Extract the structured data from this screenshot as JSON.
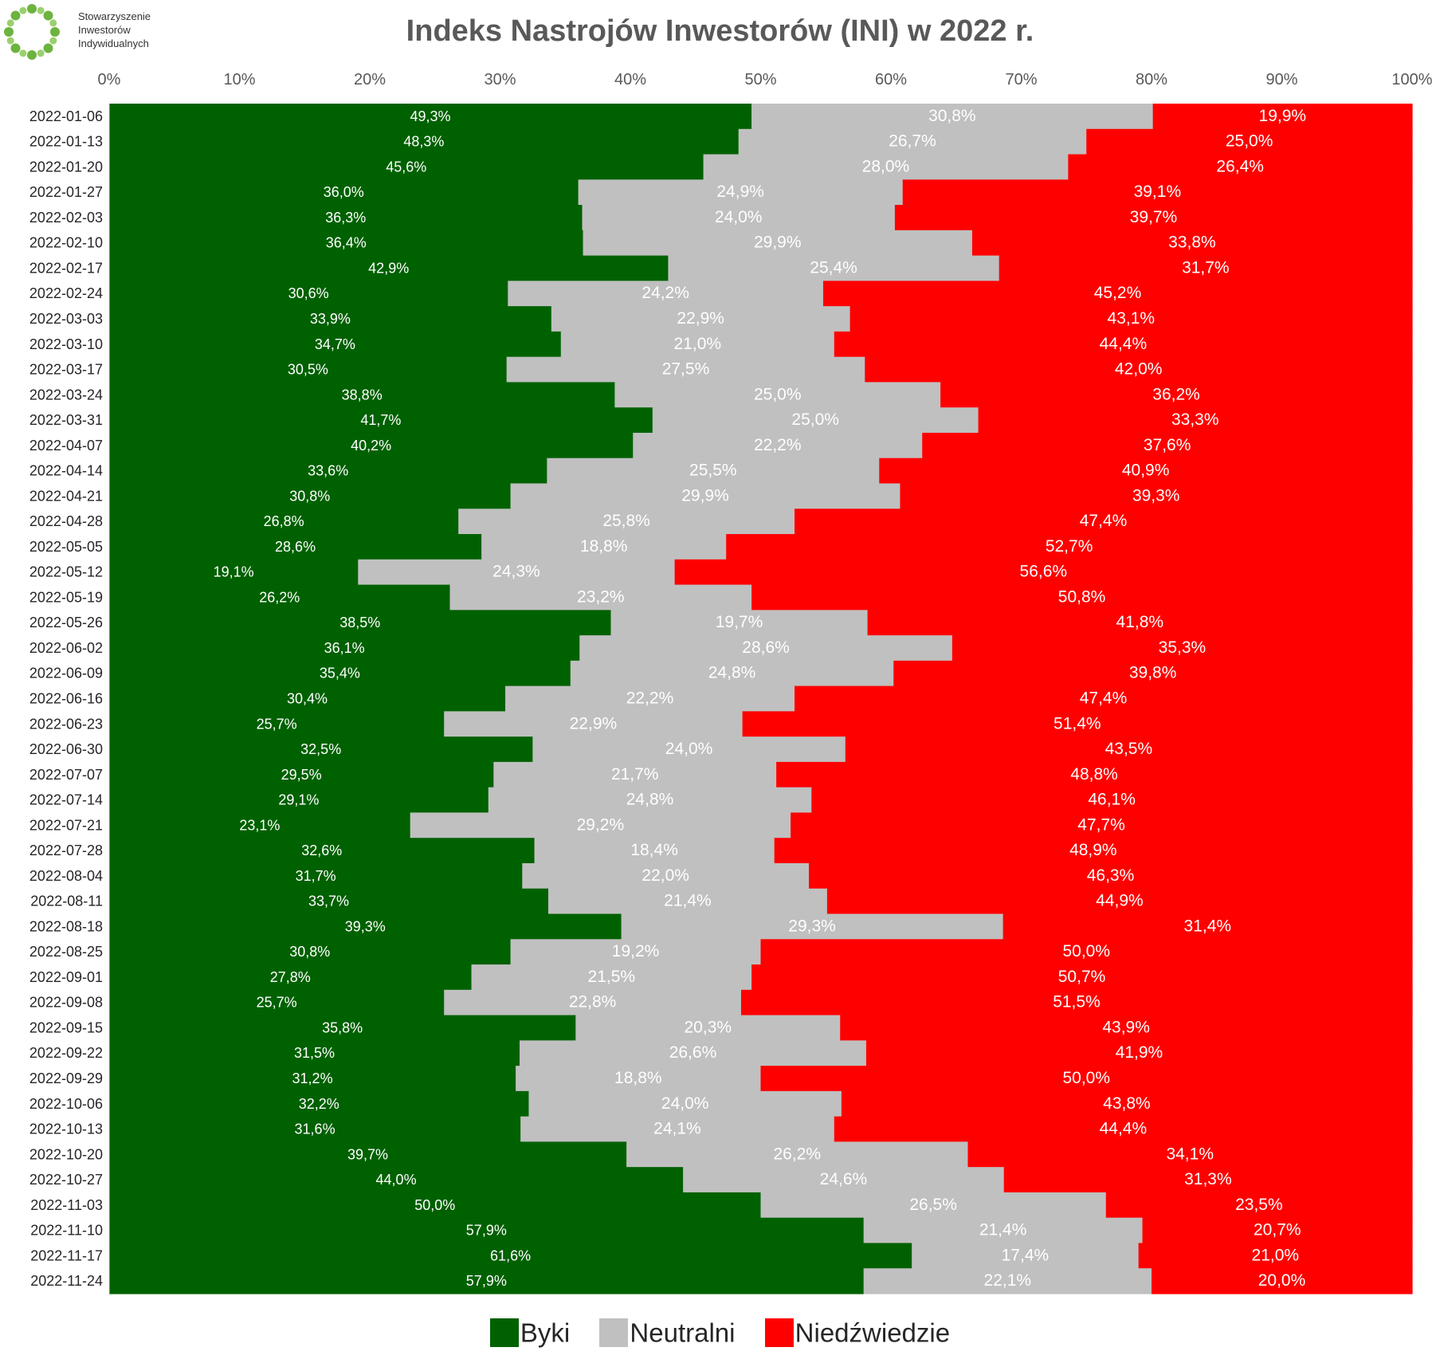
{
  "logo": {
    "lines": [
      "Stowarzyszenie",
      "Inwestorów",
      "Indywidualnych"
    ],
    "color": "#6db33f"
  },
  "chart_data": {
    "type": "bar",
    "orientation": "horizontal",
    "stacked": "percent",
    "title": "Indeks Nastrojów Inwestorów (INI) w 2022 r.",
    "x_ticks": [
      "0%",
      "10%",
      "20%",
      "30%",
      "40%",
      "50%",
      "60%",
      "70%",
      "80%",
      "90%",
      "100%"
    ],
    "xlim": [
      0,
      100
    ],
    "legend_position": "bottom",
    "categories": [
      "2022-01-06",
      "2022-01-13",
      "2022-01-20",
      "2022-01-27",
      "2022-02-03",
      "2022-02-10",
      "2022-02-17",
      "2022-02-24",
      "2022-03-03",
      "2022-03-10",
      "2022-03-17",
      "2022-03-24",
      "2022-03-31",
      "2022-04-07",
      "2022-04-14",
      "2022-04-21",
      "2022-04-28",
      "2022-05-05",
      "2022-05-12",
      "2022-05-19",
      "2022-05-26",
      "2022-06-02",
      "2022-06-09",
      "2022-06-16",
      "2022-06-23",
      "2022-06-30",
      "2022-07-07",
      "2022-07-14",
      "2022-07-21",
      "2022-07-28",
      "2022-08-04",
      "2022-08-11",
      "2022-08-18",
      "2022-08-25",
      "2022-09-01",
      "2022-09-08",
      "2022-09-15",
      "2022-09-22",
      "2022-09-29",
      "2022-10-06",
      "2022-10-13",
      "2022-10-20",
      "2022-10-27",
      "2022-11-03",
      "2022-11-10",
      "2022-11-17",
      "2022-11-24"
    ],
    "series": [
      {
        "name": "Byki",
        "color": "#006100",
        "label_color": "#ffffff",
        "values": [
          49.3,
          48.3,
          45.6,
          36.0,
          36.3,
          36.4,
          42.9,
          30.6,
          33.9,
          34.7,
          30.5,
          38.8,
          41.7,
          40.2,
          33.6,
          30.8,
          26.8,
          28.6,
          19.1,
          26.2,
          38.5,
          36.1,
          35.4,
          30.4,
          25.7,
          32.5,
          29.5,
          29.1,
          23.1,
          32.6,
          31.7,
          33.7,
          39.3,
          30.8,
          27.8,
          25.7,
          35.8,
          31.5,
          31.2,
          32.2,
          31.6,
          39.7,
          44.0,
          50.0,
          57.9,
          61.6,
          57.9
        ]
      },
      {
        "name": "Neutralni",
        "color": "#c0c0c0",
        "label_color": "#ffffff",
        "values": [
          30.8,
          26.7,
          28.0,
          24.9,
          24.0,
          29.9,
          25.4,
          24.2,
          22.9,
          21.0,
          27.5,
          25.0,
          25.0,
          22.2,
          25.5,
          29.9,
          25.8,
          18.8,
          24.3,
          23.2,
          19.7,
          28.6,
          24.8,
          22.2,
          22.9,
          24.0,
          21.7,
          24.8,
          29.2,
          18.4,
          22.0,
          21.4,
          29.3,
          19.2,
          21.5,
          22.8,
          20.3,
          26.6,
          18.8,
          24.0,
          24.1,
          26.2,
          24.6,
          26.5,
          21.4,
          17.4,
          22.1
        ]
      },
      {
        "name": "Niedźwiedzie",
        "color": "#ff0000",
        "label_color": "#ffffff",
        "values": [
          19.9,
          25.0,
          26.4,
          39.1,
          39.7,
          33.8,
          31.7,
          45.2,
          43.1,
          44.4,
          42.0,
          36.2,
          33.3,
          37.6,
          40.9,
          39.3,
          47.4,
          52.7,
          56.6,
          50.8,
          41.8,
          35.3,
          39.8,
          47.4,
          51.4,
          43.5,
          48.8,
          46.1,
          47.7,
          48.9,
          46.3,
          44.9,
          31.4,
          50.0,
          50.7,
          51.5,
          43.9,
          41.9,
          50.0,
          43.8,
          44.4,
          34.1,
          31.3,
          23.5,
          20.7,
          21.0,
          20.0
        ]
      }
    ],
    "value_labels": {
      "Byki": [
        "49,3%",
        "48,3%",
        "45,6%",
        "36,0%",
        "36,3%",
        "36,4%",
        "42,9%",
        "30,6%",
        "33,9%",
        "34,7%",
        "30,5%",
        "38,8%",
        "41,7%",
        "40,2%",
        "33,6%",
        "30,8%",
        "26,8%",
        "28,6%",
        "19,1%",
        "26,2%",
        "38,5%",
        "36,1%",
        "35,4%",
        "30,4%",
        "25,7%",
        "32,5%",
        "29,5%",
        "29,1%",
        "23,1%",
        "32,6%",
        "31,7%",
        "33,7%",
        "39,3%",
        "30,8%",
        "27,8%",
        "25,7%",
        "35,8%",
        "31,5%",
        "31,2%",
        "32,2%",
        "31,6%",
        "39,7%",
        "44,0%",
        "50,0%",
        "57,9%",
        "61,6%",
        "57,9%"
      ],
      "Neutralni": [
        "30,8%",
        "26,7%",
        "28,0%",
        "24,9%",
        "24,0%",
        "29,9%",
        "25,4%",
        "24,2%",
        "22,9%",
        "21,0%",
        "27,5%",
        "25,0%",
        "25,0%",
        "22,2%",
        "25,5%",
        "29,9%",
        "25,8%",
        "18,8%",
        "24,3%",
        "23,2%",
        "19,7%",
        "28,6%",
        "24,8%",
        "22,2%",
        "22,9%",
        "24,0%",
        "21,7%",
        "24,8%",
        "29,2%",
        "18,4%",
        "22,0%",
        "21,4%",
        "29,3%",
        "19,2%",
        "21,5%",
        "22,8%",
        "20,3%",
        "26,6%",
        "18,8%",
        "24,0%",
        "24,1%",
        "26,2%",
        "24,6%",
        "26,5%",
        "21,4%",
        "17,4%",
        "22,1%"
      ],
      "Niedźwiedzie": [
        "19,9%",
        "25,0%",
        "26,4%",
        "39,1%",
        "39,7%",
        "33,8%",
        "31,7%",
        "45,2%",
        "43,1%",
        "44,4%",
        "42,0%",
        "36,2%",
        "33,3%",
        "37,6%",
        "40,9%",
        "39,3%",
        "47,4%",
        "52,7%",
        "56,6%",
        "50,8%",
        "41,8%",
        "35,3%",
        "39,8%",
        "47,4%",
        "51,4%",
        "43,5%",
        "48,8%",
        "46,1%",
        "47,7%",
        "48,9%",
        "46,3%",
        "44,9%",
        "31,4%",
        "50,0%",
        "50,7%",
        "51,5%",
        "43,9%",
        "41,9%",
        "50,0%",
        "43,8%",
        "44,4%",
        "34,1%",
        "31,3%",
        "23,5%",
        "20,7%",
        "21,0%",
        "20,0%"
      ]
    }
  }
}
